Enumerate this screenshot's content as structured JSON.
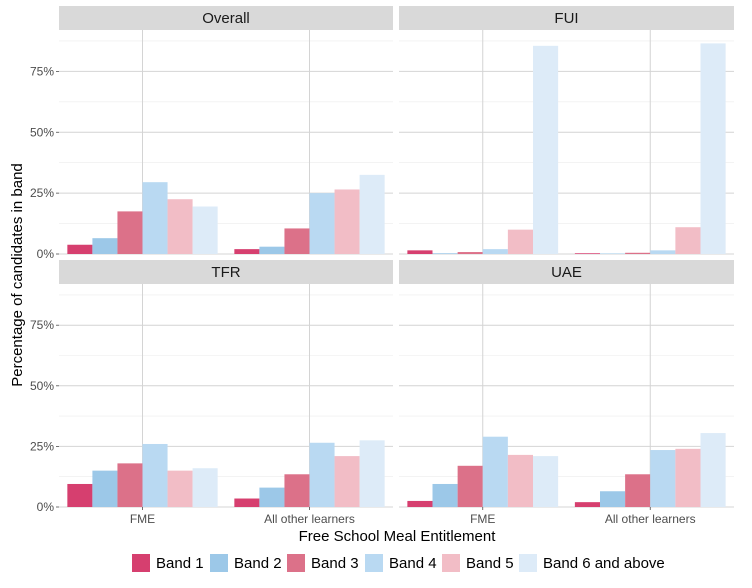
{
  "chart_data": {
    "type": "bar",
    "layout": "faceted-grouped-bar",
    "xlabel": "Free School Meal Entitlement",
    "ylabel": "Percentage of candidates in band",
    "categories": [
      "FME",
      "All other learners"
    ],
    "ylim": [
      0,
      92
    ],
    "yticks": [
      0,
      25,
      50,
      75
    ],
    "ytick_labels": [
      "0%",
      "25%",
      "50%",
      "75%"
    ],
    "grid": true,
    "legend_position": "bottom",
    "series_colors": [
      "#d63f6f",
      "#9cc8e8",
      "#dc7189",
      "#b9d9f2",
      "#f2bdc6",
      "#ddebf8"
    ],
    "series_names": [
      "Band 1",
      "Band 2",
      "Band 3",
      "Band 4",
      "Band 5",
      "Band 6 and above"
    ],
    "panels": [
      {
        "title": "Overall",
        "series": [
          {
            "name": "Band 1",
            "values": [
              3.8,
              2.0
            ]
          },
          {
            "name": "Band 2",
            "values": [
              6.5,
              3.0
            ]
          },
          {
            "name": "Band 3",
            "values": [
              17.5,
              10.5
            ]
          },
          {
            "name": "Band 4",
            "values": [
              29.5,
              25.0
            ]
          },
          {
            "name": "Band 5",
            "values": [
              22.5,
              26.5
            ]
          },
          {
            "name": "Band 6 and above",
            "values": [
              19.5,
              32.5
            ]
          }
        ]
      },
      {
        "title": "FUI",
        "series": [
          {
            "name": "Band 1",
            "values": [
              1.5,
              0.3
            ]
          },
          {
            "name": "Band 2",
            "values": [
              0.3,
              0.2
            ]
          },
          {
            "name": "Band 3",
            "values": [
              0.8,
              0.5
            ]
          },
          {
            "name": "Band 4",
            "values": [
              2.0,
              1.5
            ]
          },
          {
            "name": "Band 5",
            "values": [
              10.0,
              11.0
            ]
          },
          {
            "name": "Band 6 and above",
            "values": [
              85.5,
              86.5
            ]
          }
        ]
      },
      {
        "title": "TFR",
        "series": [
          {
            "name": "Band 1",
            "values": [
              9.5,
              3.5
            ]
          },
          {
            "name": "Band 2",
            "values": [
              15.0,
              8.0
            ]
          },
          {
            "name": "Band 3",
            "values": [
              18.0,
              13.5
            ]
          },
          {
            "name": "Band 4",
            "values": [
              26.0,
              26.5
            ]
          },
          {
            "name": "Band 5",
            "values": [
              15.0,
              21.0
            ]
          },
          {
            "name": "Band 6 and above",
            "values": [
              16.0,
              27.5
            ]
          }
        ]
      },
      {
        "title": "UAE",
        "series": [
          {
            "name": "Band 1",
            "values": [
              2.5,
              2.0
            ]
          },
          {
            "name": "Band 2",
            "values": [
              9.5,
              6.5
            ]
          },
          {
            "name": "Band 3",
            "values": [
              17.0,
              13.5
            ]
          },
          {
            "name": "Band 4",
            "values": [
              29.0,
              23.5
            ]
          },
          {
            "name": "Band 5",
            "values": [
              21.5,
              24.0
            ]
          },
          {
            "name": "Band 6 and above",
            "values": [
              21.0,
              30.5
            ]
          }
        ]
      }
    ]
  }
}
